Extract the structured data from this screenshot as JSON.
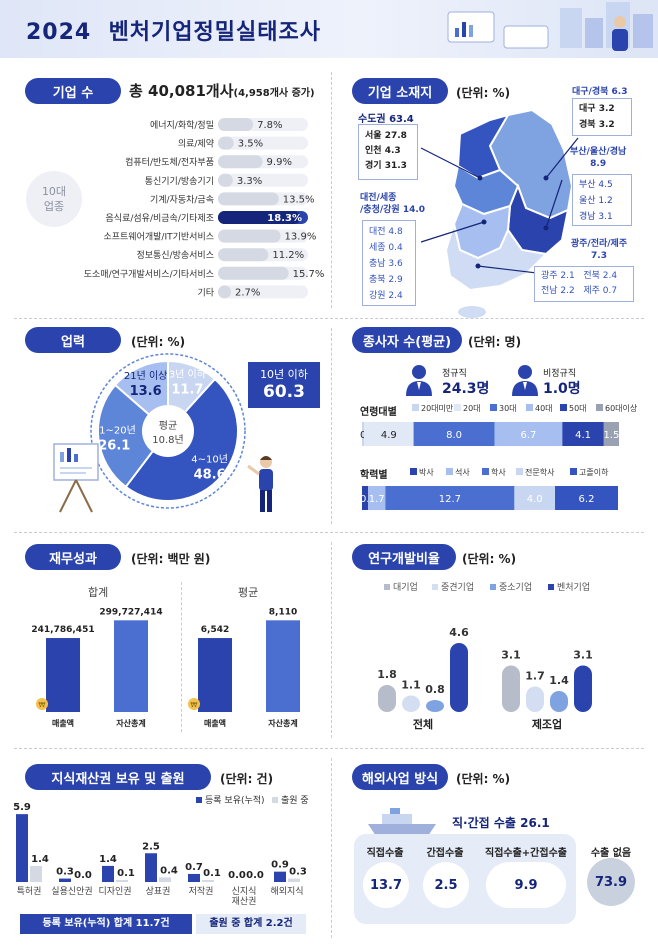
{
  "header": {
    "year": "2024",
    "title": "벤처기업정밀실태조사"
  },
  "s_firms": {
    "pill": "기업 수",
    "total": "총 40,081개사",
    "increase": "(4,958개사 증가)",
    "group_label": "10대\n업종",
    "group_line1": "10대",
    "group_line2": "업종"
  },
  "s_loc": {
    "pill": "기업 소재지",
    "unit": "(단위: %)",
    "capital": {
      "title": "수도권 63.4",
      "rows": [
        "서울 27.8",
        "인천 4.3",
        "경기 31.3"
      ]
    },
    "central": {
      "title1": "대전/세종",
      "title2": "/충청/강원 14.0",
      "rows": [
        "대전 4.8",
        "세종 0.4",
        "충남 3.6",
        "충북 2.9",
        "강원 2.4"
      ]
    },
    "daegu": {
      "title": "대구/경북 6.3",
      "rows": [
        "대구  3.2",
        "경북  3.2"
      ]
    },
    "busan": {
      "title1": "부산/울산/경남",
      "title2": "8.9",
      "rows": [
        "부산  4.5",
        "울산  1.2",
        "경남  3.1"
      ]
    },
    "gwangju": {
      "title1": "광주/전라/제주",
      "title2": "7.3",
      "row1a": "광주  2.1",
      "row1b": "전북  2.4",
      "row2a": "전남  2.2",
      "row2b": "제주  0.7"
    }
  },
  "s_age": {
    "pill": "업력",
    "unit": "(단위: %)",
    "center_label": "평균",
    "center_value": "10.8년",
    "callout_label": "10년 이하",
    "callout_value": "60.3"
  },
  "s_emp": {
    "pill": "종사자 수(평균)",
    "unit": "(단위: 명)",
    "regular_label": "정규직",
    "regular_value": "24.3명",
    "nonregular_label": "비정규직",
    "nonregular_value": "1.0명",
    "age_row_label": "연령대별",
    "age_legend": [
      "20대미만",
      "20대",
      "30대",
      "40대",
      "50대",
      "60대이상"
    ],
    "edu_row_label": "학력별",
    "edu_legend": [
      "박사",
      "석사",
      "학사",
      "전문학사",
      "고졸이하"
    ]
  },
  "s_fin": {
    "pill": "재무성과",
    "unit": "(단위: 백만 원)",
    "sum_label": "합계",
    "avg_label": "평균",
    "coin_glyph": "₩"
  },
  "s_rnd": {
    "pill": "연구개발비율",
    "unit": "(단위: %)"
  },
  "s_ip": {
    "pill": "지식재산권 보유 및 출원",
    "unit": "(단위: 건)",
    "footer_reg": "등록 보유(누적) 합계 11.7건",
    "footer_app": "출원 중 합계 2.2건"
  },
  "s_ovs": {
    "pill": "해외사업 방식",
    "unit": "(단위: %)",
    "ship_label": "직·간접 수출 26.1",
    "items": [
      {
        "label": "직접수출",
        "value": "13.7"
      },
      {
        "label": "간접수출",
        "value": "2.5"
      },
      {
        "label": "직접수출+간접수출",
        "value": "9.9"
      },
      {
        "label": "수출 없음",
        "value": "73.9"
      }
    ]
  },
  "colors": {
    "navy": "#2b44ad",
    "dark": "#14257a",
    "mid": "#4a6fd0",
    "light": "#7fa2e0",
    "pale": "#c9d6f1",
    "gray": "#b7bccb"
  },
  "chart_data": [
    {
      "id": "industry",
      "type": "bar",
      "orientation": "horizontal",
      "categories": [
        "에너지/화학/정밀",
        "의료/제약",
        "컴퓨터/반도체/전자부품",
        "통신기기/방송기기",
        "기계/자동차/금속",
        "음식료/섬유/비금속/기타제조",
        "소프트웨어개발/IT기반서비스",
        "정보통신/방송서비스",
        "도소매/연구개발서비스/기타서비스",
        "기타"
      ],
      "values": [
        7.8,
        3.5,
        9.9,
        3.3,
        13.5,
        18.3,
        13.9,
        11.2,
        15.7,
        2.7
      ],
      "labels": [
        "7.8%",
        "3.5%",
        "9.9%",
        "3.3%",
        "13.5%",
        "18.3%",
        "13.9%",
        "11.2%",
        "15.7%",
        "2.7%"
      ],
      "highlight": 5
    },
    {
      "id": "firm_age",
      "type": "pie",
      "categories": [
        "3년 이하",
        "4~10년",
        "11~20년",
        "21년 이상"
      ],
      "values": [
        11.7,
        48.6,
        26.1,
        13.6
      ]
    },
    {
      "id": "emp_age",
      "type": "bar",
      "stacked": true,
      "orientation": "horizontal",
      "series": [
        {
          "name": "20대미만",
          "values": [
            0.1
          ]
        },
        {
          "name": "20대",
          "values": [
            4.9
          ]
        },
        {
          "name": "30대",
          "values": [
            8.0
          ]
        },
        {
          "name": "40대",
          "values": [
            6.7
          ]
        },
        {
          "name": "50대",
          "values": [
            4.1
          ]
        },
        {
          "name": "60대이상",
          "values": [
            1.5
          ]
        }
      ]
    },
    {
      "id": "emp_edu",
      "type": "bar",
      "stacked": true,
      "orientation": "horizontal",
      "series": [
        {
          "name": "박사",
          "values": [
            0.6
          ]
        },
        {
          "name": "석사",
          "values": [
            1.7
          ]
        },
        {
          "name": "학사",
          "values": [
            12.7
          ]
        },
        {
          "name": "전문학사",
          "values": [
            4.0
          ]
        },
        {
          "name": "고졸이하",
          "values": [
            6.2
          ]
        }
      ]
    },
    {
      "id": "fin_sum",
      "type": "bar",
      "title": "합계",
      "categories": [
        "매출액",
        "자산총계"
      ],
      "values": [
        241786451,
        299727414
      ],
      "labels": [
        "241,786,451",
        "299,727,414"
      ]
    },
    {
      "id": "fin_avg",
      "type": "bar",
      "title": "평균",
      "categories": [
        "매출액",
        "자산총계"
      ],
      "values": [
        6542,
        8110
      ],
      "labels": [
        "6,542",
        "8,110"
      ]
    },
    {
      "id": "rnd",
      "type": "bar",
      "categories": [
        "전체",
        "제조업"
      ],
      "series": [
        {
          "name": "대기업",
          "values": [
            1.8,
            3.1
          ]
        },
        {
          "name": "중견기업",
          "values": [
            1.1,
            1.7
          ]
        },
        {
          "name": "중소기업",
          "values": [
            0.8,
            1.4
          ]
        },
        {
          "name": "벤처기업",
          "values": [
            4.6,
            3.1
          ]
        }
      ]
    },
    {
      "id": "ip",
      "type": "bar",
      "categories": [
        "특허권",
        "실용신안권",
        "디자인권",
        "상표권",
        "저작권",
        "신지식\n재산권",
        "해외지식"
      ],
      "category_lines": [
        [
          "특허권"
        ],
        [
          "실용신안권"
        ],
        [
          "디자인권"
        ],
        [
          "상표권"
        ],
        [
          "저작권"
        ],
        [
          "신지식",
          "재산권"
        ],
        [
          "해외지식"
        ]
      ],
      "series": [
        {
          "name": "등록 보유(누적)",
          "values": [
            5.9,
            0.3,
            1.4,
            2.5,
            0.7,
            0.0,
            0.9
          ]
        },
        {
          "name": "출원 중",
          "values": [
            1.4,
            0.0,
            0.1,
            0.4,
            0.1,
            0.0,
            0.3
          ]
        }
      ]
    }
  ]
}
